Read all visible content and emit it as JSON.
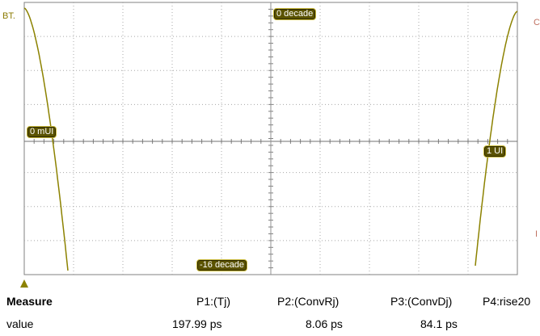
{
  "scope": {
    "trace_label_left": "BT.",
    "trace_label_right": "C",
    "right_edge_marker": "I",
    "markers": {
      "top_center": "0 decade",
      "bottom_center": "-16 decade",
      "left_mid": "0 mUI",
      "right_mid": "1 UI"
    },
    "colors": {
      "trace": "#8c8200",
      "grid": "#9a9a9a",
      "axis": "#808080",
      "tag_bg": "#5a5200"
    }
  },
  "measure": {
    "header": "Measure",
    "row_label": "value",
    "columns": [
      {
        "name": "P1:(Tj)",
        "value": "197.99 ps"
      },
      {
        "name": "P2:(ConvRj)",
        "value": "8.06 ps"
      },
      {
        "name": "P3:(ConvDj)",
        "value": "84.1 ps"
      },
      {
        "name": "P4:rise20",
        "value": ""
      }
    ]
  }
}
